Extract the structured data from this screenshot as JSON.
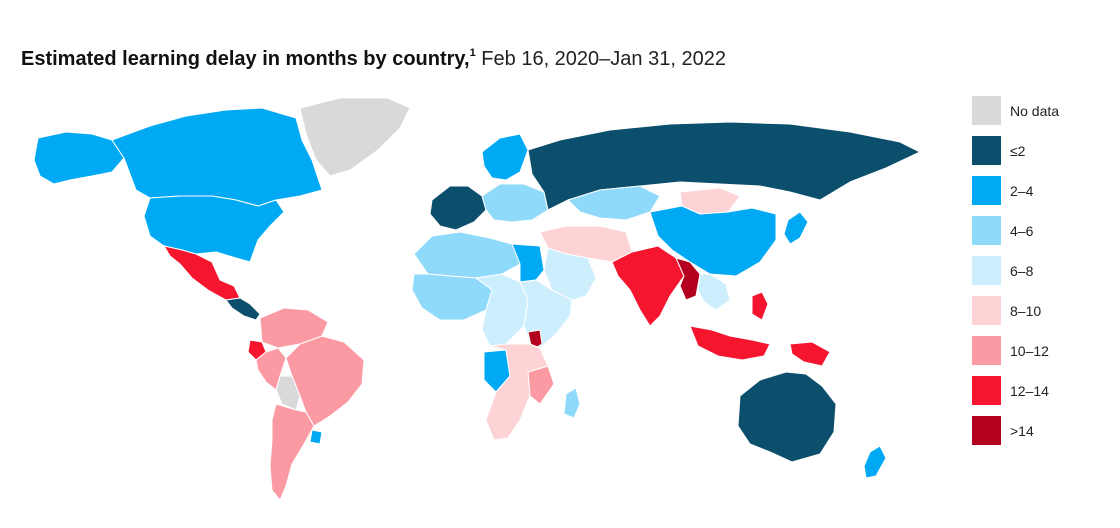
{
  "title": {
    "main": "Estimated learning delay in months by country,",
    "footnote": "1",
    "period": "Feb 16, 2020–Jan 31, 2022"
  },
  "legend": [
    {
      "label": "No data",
      "color": "#d9d9d9"
    },
    {
      "label": "≤2",
      "color": "#0b4f6c"
    },
    {
      "label": "2–4",
      "color": "#00a9f4"
    },
    {
      "label": "4–6",
      "color": "#8fd9fb"
    },
    {
      "label": "6–8",
      "color": "#cdeefd"
    },
    {
      "label": "8–10",
      "color": "#fdd3d6"
    },
    {
      "label": "10–12",
      "color": "#fb9aa3"
    },
    {
      "label": "12–14",
      "color": "#f5152e"
    },
    {
      "label": ">14",
      "color": "#b3001e"
    }
  ],
  "regions": [
    {
      "name": "canada",
      "category": "2–4"
    },
    {
      "name": "alaska",
      "category": "2–4"
    },
    {
      "name": "united-states",
      "category": "2–4"
    },
    {
      "name": "greenland",
      "category": "No data"
    },
    {
      "name": "mexico",
      "category": "12–14"
    },
    {
      "name": "central-america",
      "category": "≤2"
    },
    {
      "name": "colombia-venezuela",
      "category": "10–12"
    },
    {
      "name": "ecuador",
      "category": "12–14"
    },
    {
      "name": "brazil",
      "category": "10–12"
    },
    {
      "name": "bolivia",
      "category": "No data"
    },
    {
      "name": "argentina-chile",
      "category": "10–12"
    },
    {
      "name": "uruguay",
      "category": "2–4"
    },
    {
      "name": "western-europe",
      "category": "≤2"
    },
    {
      "name": "central-europe",
      "category": "4–6"
    },
    {
      "name": "scandinavia",
      "category": "2–4"
    },
    {
      "name": "russia",
      "category": "≤2"
    },
    {
      "name": "kazakhstan",
      "category": "4–6"
    },
    {
      "name": "mongolia",
      "category": "8–10"
    },
    {
      "name": "china",
      "category": "2–4"
    },
    {
      "name": "japan",
      "category": "2–4"
    },
    {
      "name": "middle-east",
      "category": "8–10"
    },
    {
      "name": "arabian-peninsula",
      "category": "6–8"
    },
    {
      "name": "india",
      "category": "12–14"
    },
    {
      "name": "myanmar",
      "category": ">14"
    },
    {
      "name": "southeast-asia",
      "category": "6–8"
    },
    {
      "name": "indonesia",
      "category": "12–14"
    },
    {
      "name": "philippines",
      "category": "12–14"
    },
    {
      "name": "papua-new-guinea",
      "category": "12–14"
    },
    {
      "name": "australia",
      "category": "≤2"
    },
    {
      "name": "new-zealand",
      "category": "2–4"
    },
    {
      "name": "north-africa",
      "category": "4–6"
    },
    {
      "name": "egypt",
      "category": "2–4"
    },
    {
      "name": "west-africa",
      "category": "4–6"
    },
    {
      "name": "central-africa",
      "category": "6–8"
    },
    {
      "name": "east-africa",
      "category": "6–8"
    },
    {
      "name": "uganda",
      "category": ">14"
    },
    {
      "name": "southern-africa",
      "category": "8–10"
    },
    {
      "name": "mozambique",
      "category": "10–12"
    },
    {
      "name": "angola",
      "category": "2–4"
    },
    {
      "name": "madagascar",
      "category": "4–6"
    }
  ]
}
